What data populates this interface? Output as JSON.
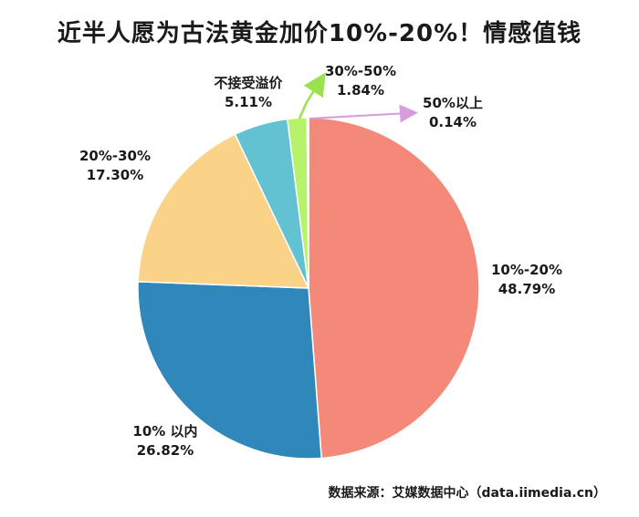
{
  "title": "近半人愿为古法黄金加价10%-20%！情感值钱",
  "source": "数据来源：艾媒数据中心（data.iimedia.cn）",
  "chart_data": {
    "type": "pie",
    "title": "近半人愿为古法黄金加价10%-20%！情感值钱",
    "start_angle_deg": 0,
    "direction": "clockwise",
    "slices": [
      {
        "label": "10%-20%",
        "value": 48.79,
        "value_label": "48.79%",
        "color": "#F4897A"
      },
      {
        "label": "10% 以内",
        "value": 26.82,
        "value_label": "26.82%",
        "color": "#2F87BA"
      },
      {
        "label": "20%-30%",
        "value": 17.3,
        "value_label": "17.30%",
        "color": "#FAD388"
      },
      {
        "label": "不接受溢价",
        "value": 5.11,
        "value_label": "5.11%",
        "color": "#62C2D1"
      },
      {
        "label": "30%-50%",
        "value": 1.84,
        "value_label": "1.84%",
        "color": "#B6F36A"
      },
      {
        "label": "50%以上",
        "value": 0.14,
        "value_label": "0.14%",
        "color": "#E5A6E6"
      }
    ]
  }
}
